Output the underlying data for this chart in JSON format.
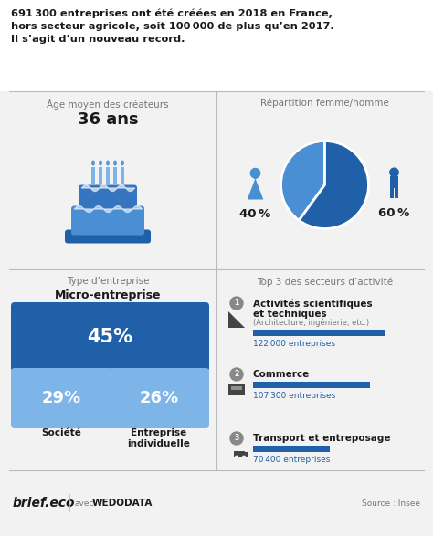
{
  "title_line1": "691 300 entreprises ont été créées en 2018 en France,",
  "title_line2": "hors secteur agricole, soit 100 000 de plus qu’en 2017.",
  "title_line3": "Il s’agit d’un nouveau record.",
  "section1_title": "Âge moyen des créateurs",
  "section1_value": "36 ans",
  "section2_title": "Répartition femme/homme",
  "female_pct": "40 %",
  "male_pct": "60 %",
  "female_val": 40,
  "male_val": 60,
  "section3_title": "Type d’entreprise",
  "micro_label": "Micro-entreprise",
  "micro_pct": "45%",
  "societe_pct": "29%",
  "entreprise_pct": "26%",
  "societe_label": "Société",
  "entreprise_label": "Entreprise\nindividuelle",
  "section4_title": "Top 3 des secteurs d’activité",
  "sector1_name": "Activités scientifiques\net techniques",
  "sector1_sub": "(Architecture, ingénierie, etc.)",
  "sector1_count": "122 000 entreprises",
  "sector1_val": 122000,
  "sector2_name": "Commerce",
  "sector2_count": "107 300 entreprises",
  "sector2_val": 107300,
  "sector3_name": "Transport et entreposage",
  "sector3_count": "70 400 entreprises",
  "sector3_val": 70400,
  "max_sector_val": 122000,
  "blue_dark": "#2060A8",
  "blue_mid": "#4A8FD4",
  "blue_light": "#7EB5E8",
  "blue_bar": "#2060A8",
  "blue_count": "#2060A8",
  "text_dark": "#1A1A1A",
  "text_gray": "#777777",
  "bg_color": "#F2F2F2",
  "separator_color": "#BBBBBB",
  "footer_text": "brief.eco",
  "footer_avec": "avec",
  "footer_wedo": "WEDODATA",
  "source_text": "Source : Insee"
}
